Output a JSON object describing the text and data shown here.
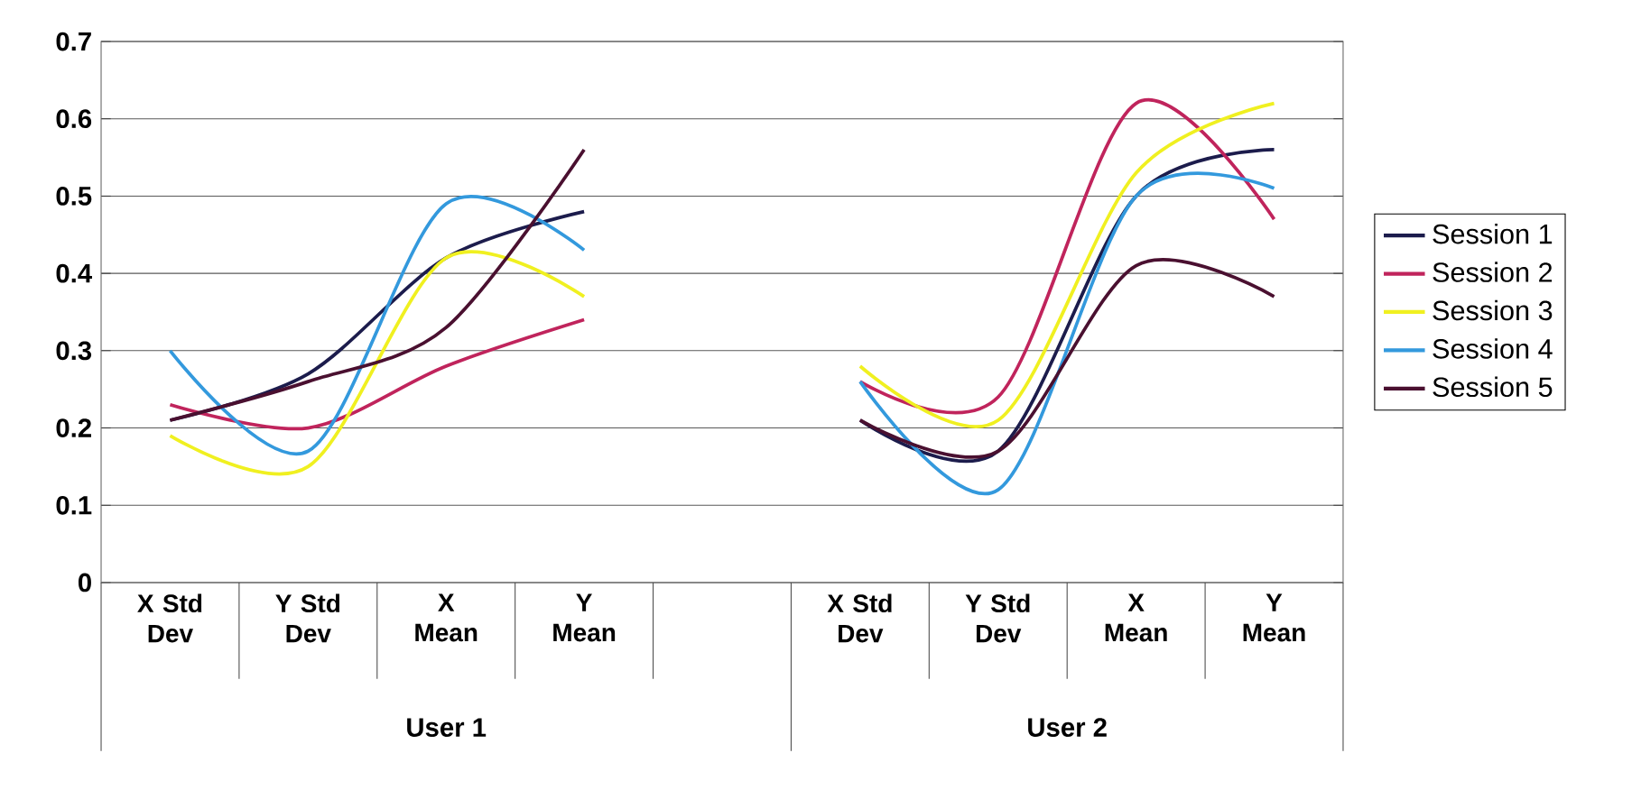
{
  "chart_data": {
    "type": "line",
    "categories": [
      "X Std Dev",
      "Y Std Dev",
      "X Mean",
      "Y Mean",
      null,
      "X Std Dev",
      "Y Std Dev",
      "X Mean",
      "Y Mean"
    ],
    "series": [
      {
        "name": "Session 1",
        "color": "#1c1c4c",
        "values": [
          0.21,
          0.27,
          0.42,
          0.48,
          null,
          0.21,
          0.17,
          0.5,
          0.56
        ]
      },
      {
        "name": "Session 2",
        "color": "#c0245c",
        "values": [
          0.23,
          0.2,
          0.28,
          0.34,
          null,
          0.26,
          0.24,
          0.62,
          0.47
        ]
      },
      {
        "name": "Session 3",
        "color": "#f0f020",
        "values": [
          0.19,
          0.15,
          0.42,
          0.37,
          null,
          0.28,
          0.21,
          0.53,
          0.62
        ]
      },
      {
        "name": "Session 4",
        "color": "#3399dd",
        "values": [
          0.3,
          0.17,
          0.49,
          0.43,
          null,
          0.26,
          0.12,
          0.5,
          0.51
        ]
      },
      {
        "name": "Session 5",
        "color": "#4a1030",
        "values": [
          0.21,
          0.26,
          0.33,
          0.56,
          null,
          0.21,
          0.17,
          0.41,
          0.37
        ]
      }
    ],
    "ylim": [
      0,
      0.7
    ],
    "yticks": [
      0,
      0.1,
      0.2,
      0.3,
      0.4,
      0.5,
      0.6,
      0.7
    ],
    "grid": "y",
    "legend": "right",
    "line_style": "solid",
    "marker": "none",
    "annotations": [
      "User 1",
      "User 2"
    ]
  }
}
